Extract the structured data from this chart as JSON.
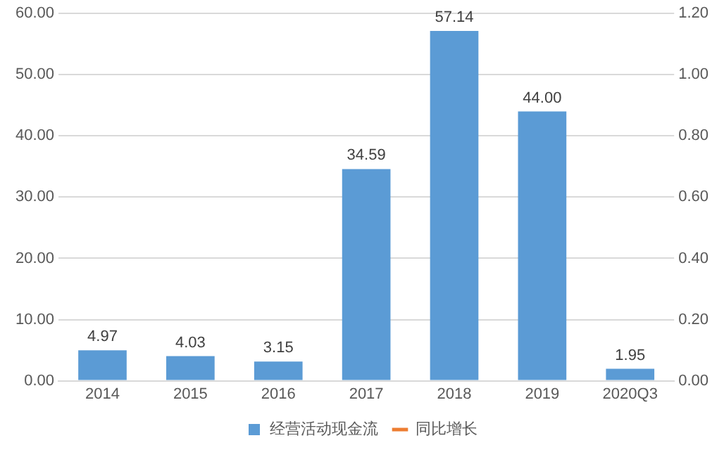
{
  "chart_data": {
    "type": "bar",
    "categories": [
      "2014",
      "2015",
      "2016",
      "2017",
      "2018",
      "2019",
      "2020Q3"
    ],
    "series": [
      {
        "name": "经营活动现金流",
        "color": "#5b9bd5",
        "values": [
          4.97,
          4.03,
          3.15,
          34.59,
          57.14,
          44.0,
          1.95
        ],
        "value_labels": [
          "4.97",
          "4.03",
          "3.15",
          "34.59",
          "57.14",
          "44.00",
          "1.95"
        ]
      },
      {
        "name": "同比增长",
        "type": "line",
        "axis": "y2",
        "color": "#ed7d31",
        "values": [
          null,
          null,
          null,
          null,
          null,
          null,
          null
        ]
      }
    ],
    "ylim": [
      0,
      60
    ],
    "yticks": [
      {
        "value": 0,
        "label": "0.00"
      },
      {
        "value": 10,
        "label": "10.00"
      },
      {
        "value": 20,
        "label": "20.00"
      },
      {
        "value": 30,
        "label": "30.00"
      },
      {
        "value": 40,
        "label": "40.00"
      },
      {
        "value": 50,
        "label": "50.00"
      },
      {
        "value": 60,
        "label": "60.00"
      }
    ],
    "y2lim": [
      0,
      1.2
    ],
    "y2ticks": [
      {
        "value": 0,
        "label": "0.00"
      },
      {
        "value": 0.2,
        "label": "0.20"
      },
      {
        "value": 0.4,
        "label": "0.40"
      },
      {
        "value": 0.6,
        "label": "0.60"
      },
      {
        "value": 0.8,
        "label": "0.80"
      },
      {
        "value": 1.0,
        "label": "1.00"
      },
      {
        "value": 1.2,
        "label": "1.20"
      }
    ],
    "grid": "y",
    "legend": "bottom"
  }
}
